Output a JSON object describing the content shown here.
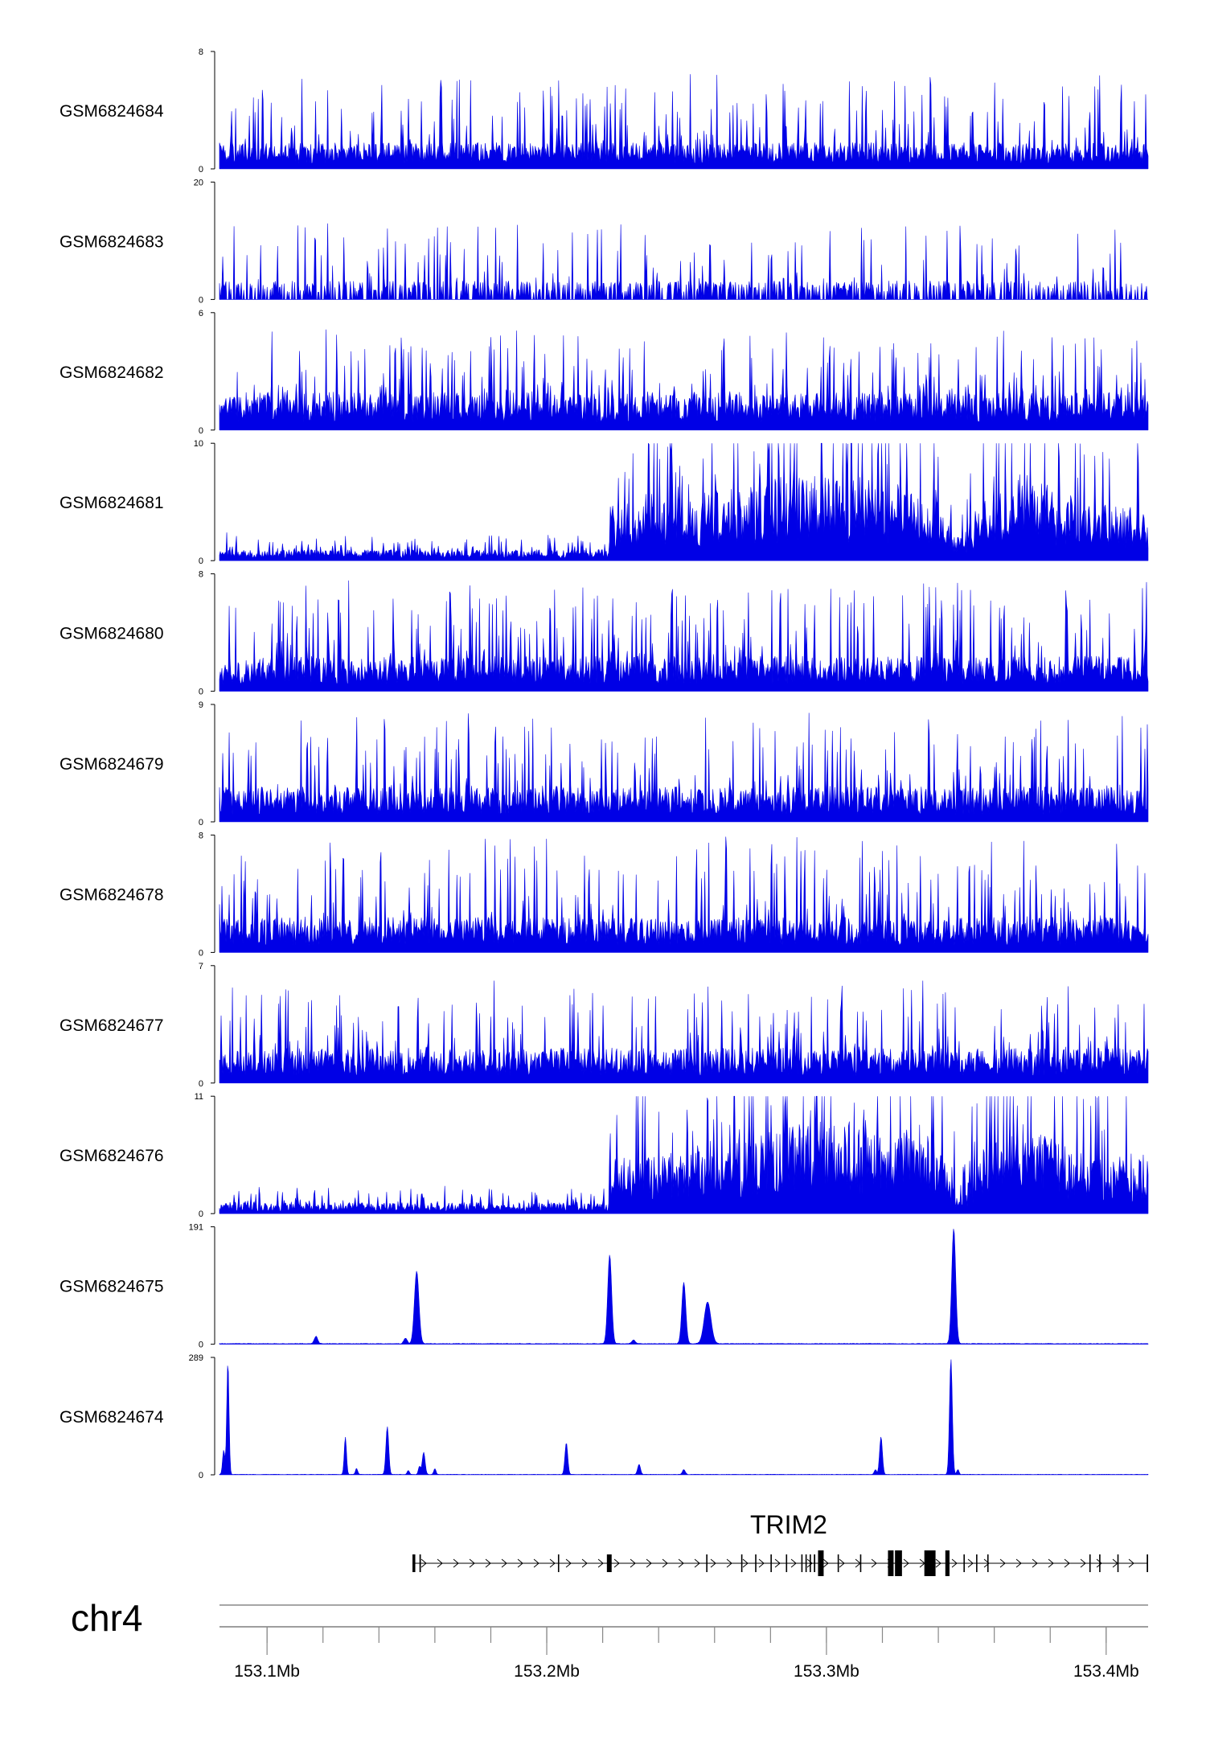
{
  "chart_data": {
    "type": "genome-browser-coverage",
    "chromosome": "chr4",
    "region": {
      "start_mb": 153.083,
      "end_mb": 153.415
    },
    "series_color": "#0000e6",
    "tracks": [
      {
        "name": "GSM6824684",
        "ymax": 8,
        "ymin": 0,
        "profile": "noise",
        "base": 1.2,
        "spike": 5.0
      },
      {
        "name": "GSM6824683",
        "ymax": 20,
        "ymin": 0,
        "profile": "sparse",
        "base": 2.0,
        "spike": 11.0
      },
      {
        "name": "GSM6824682",
        "ymax": 6,
        "ymin": 0,
        "profile": "noise",
        "base": 1.3,
        "spike": 3.6
      },
      {
        "name": "GSM6824681",
        "ymax": 10,
        "ymin": 0,
        "profile": "step",
        "base": 0.9,
        "spike": 4.5
      },
      {
        "name": "GSM6824680",
        "ymax": 8,
        "ymin": 0,
        "profile": "noise",
        "base": 1.6,
        "spike": 5.5
      },
      {
        "name": "GSM6824679",
        "ymax": 9,
        "ymin": 0,
        "profile": "noise",
        "base": 1.8,
        "spike": 6.0
      },
      {
        "name": "GSM6824678",
        "ymax": 8,
        "ymin": 0,
        "profile": "noise",
        "base": 1.6,
        "spike": 5.8
      },
      {
        "name": "GSM6824677",
        "ymax": 7,
        "ymin": 0,
        "profile": "noise",
        "base": 1.4,
        "spike": 4.2
      },
      {
        "name": "GSM6824676",
        "ymax": 11,
        "ymin": 0,
        "profile": "step",
        "base": 1.0,
        "spike": 5.0
      },
      {
        "name": "GSM6824675",
        "ymax": 191,
        "ymin": 0,
        "profile": "peaks",
        "peaks": [
          [
            153.1175,
            12,
            0.0006
          ],
          [
            153.1495,
            9,
            0.0006
          ],
          [
            153.1535,
            118,
            0.0008
          ],
          [
            153.2225,
            145,
            0.0007
          ],
          [
            153.231,
            6,
            0.0006
          ],
          [
            153.249,
            100,
            0.0007
          ],
          [
            153.2575,
            68,
            0.0012
          ],
          [
            153.3455,
            188,
            0.0007
          ]
        ]
      },
      {
        "name": "GSM6824674",
        "ymax": 289,
        "ymin": 0,
        "profile": "peaks",
        "peaks": [
          [
            153.0845,
            60,
            0.0004
          ],
          [
            153.086,
            278,
            0.0004
          ],
          [
            153.128,
            92,
            0.0004
          ],
          [
            153.132,
            15,
            0.0004
          ],
          [
            153.143,
            118,
            0.0005
          ],
          [
            153.1505,
            10,
            0.0004
          ],
          [
            153.1545,
            20,
            0.0004
          ],
          [
            153.156,
            55,
            0.0005
          ],
          [
            153.16,
            14,
            0.0004
          ],
          [
            153.207,
            78,
            0.0005
          ],
          [
            153.233,
            25,
            0.0005
          ],
          [
            153.249,
            12,
            0.0005
          ],
          [
            153.3175,
            12,
            0.0004
          ],
          [
            153.3195,
            93,
            0.0005
          ],
          [
            153.3445,
            285,
            0.0005
          ],
          [
            153.347,
            12,
            0.0004
          ]
        ]
      }
    ],
    "gene": {
      "name": "TRIM2",
      "strand": "+",
      "start_mb": 153.152,
      "end_mb": 153.415,
      "exons_mb": [
        [
          153.152,
          153.153
        ],
        [
          153.1545,
          153.155
        ],
        [
          153.204,
          153.2044
        ],
        [
          153.2215,
          153.2232
        ],
        [
          153.257,
          153.2574
        ],
        [
          153.2695,
          153.2699
        ],
        [
          153.2745,
          153.2749
        ],
        [
          153.28,
          153.2804
        ],
        [
          153.2855,
          153.2859
        ],
        [
          153.291,
          153.2914
        ],
        [
          153.2925,
          153.2929
        ],
        [
          153.294,
          153.2944
        ],
        [
          153.2955,
          153.296
        ],
        [
          153.297,
          153.299
        ],
        [
          153.304,
          153.3044
        ],
        [
          153.312,
          153.3124
        ],
        [
          153.322,
          153.324
        ],
        [
          153.3245,
          153.327
        ],
        [
          153.335,
          153.339
        ],
        [
          153.3425,
          153.344
        ],
        [
          153.349,
          153.3494
        ],
        [
          153.3535,
          153.3539
        ],
        [
          153.3575,
          153.3579
        ],
        [
          153.394,
          153.3944
        ],
        [
          153.3975,
          153.3979
        ],
        [
          153.404,
          153.4044
        ],
        [
          153.4145,
          153.415
        ]
      ],
      "tall_exons_mb": [
        [
          153.297,
          153.299
        ],
        [
          153.322,
          153.324
        ],
        [
          153.3245,
          153.327
        ],
        [
          153.335,
          153.339
        ],
        [
          153.3425,
          153.344
        ]
      ]
    },
    "xaxis": {
      "tick_labels": [
        "153.1Mb",
        "153.2Mb",
        "153.3Mb",
        "153.4Mb"
      ],
      "tick_values_mb": [
        153.1,
        153.2,
        153.3,
        153.4
      ],
      "minor_tick_step_mb": 0.02
    }
  }
}
